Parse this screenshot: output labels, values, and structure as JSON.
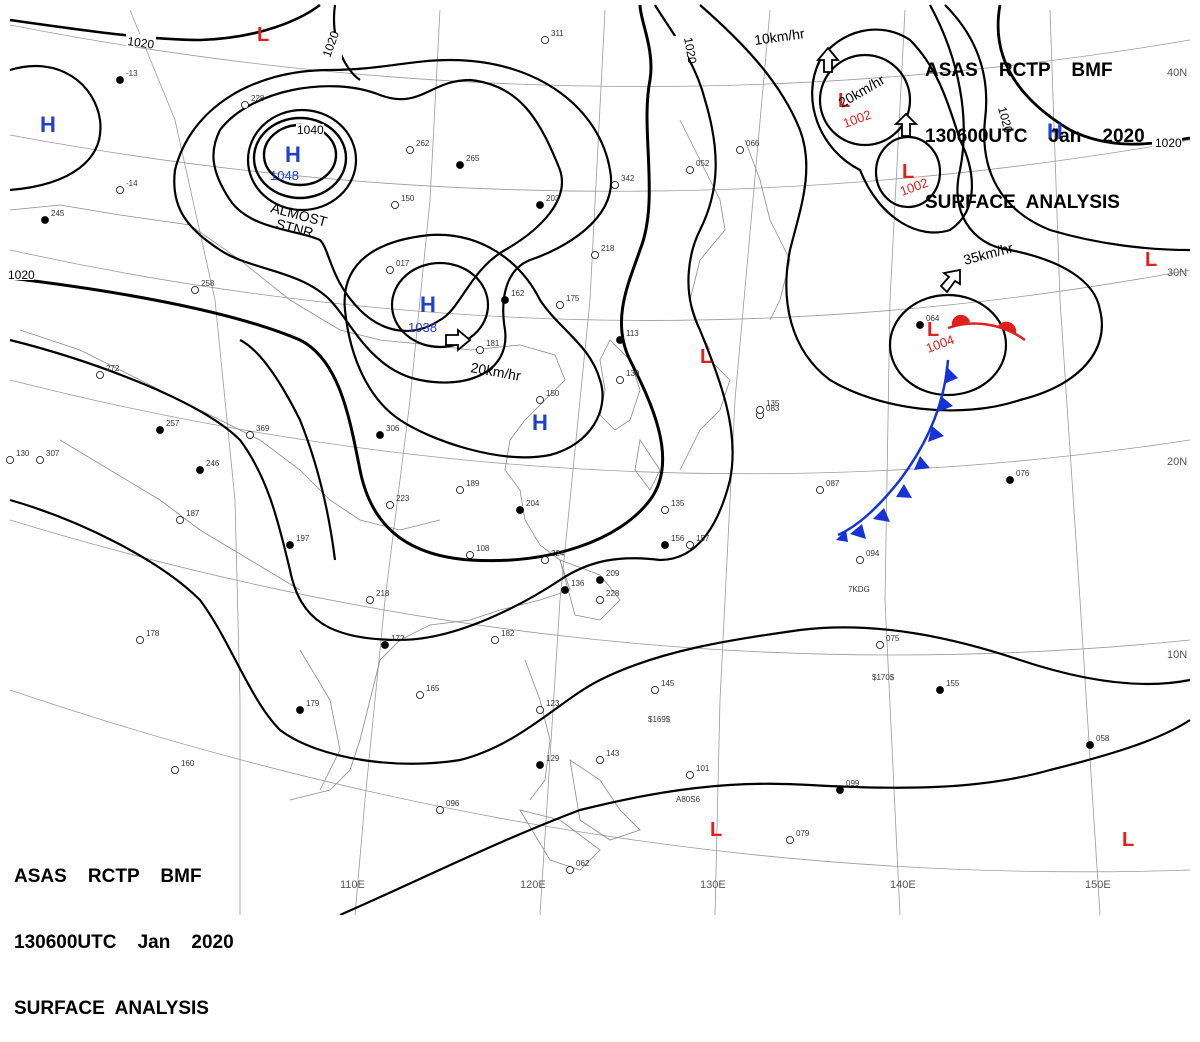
{
  "header": {
    "line1": "ASAS    RCTP    BMF",
    "line2": "130600UTC    Jan    2020",
    "line3": "SURFACE  ANALYSIS"
  },
  "colors": {
    "high": "#1f3fd0",
    "low": "#e0201c",
    "cold_front": "#1533d6",
    "warm_front": "#e0201c",
    "isobar": "#000000"
  },
  "lon_labels": [
    "110E",
    "120E",
    "130E",
    "140E",
    "150E"
  ],
  "lat_labels": [
    "40N",
    "30N",
    "20N",
    "10N"
  ],
  "isobars": {
    "lbl_1020_a": "1020",
    "lbl_1020_b": "1020",
    "lbl_1020_c": "1020",
    "lbl_1020_d": "1020",
    "lbl_1020_e": "1020",
    "lbl_1040": "1040"
  },
  "pressure_centers": [
    {
      "type": "H",
      "value": "1048",
      "note": "ALMOST STNR"
    },
    {
      "type": "H",
      "value": "1038",
      "motion": "20km/hr"
    },
    {
      "type": "H",
      "value": ""
    },
    {
      "type": "H",
      "value": ""
    },
    {
      "type": "H",
      "value": ""
    },
    {
      "type": "L",
      "value": "1002",
      "motion": "20km/hr"
    },
    {
      "type": "L",
      "value": "1002",
      "motion": "10km/hr"
    },
    {
      "type": "L",
      "value": "1004",
      "motion": "35km/hr"
    },
    {
      "type": "L",
      "value": ""
    },
    {
      "type": "L",
      "value": ""
    },
    {
      "type": "L",
      "value": ""
    },
    {
      "type": "L",
      "value": ""
    },
    {
      "type": "L",
      "value": ""
    }
  ],
  "notes": {
    "almost": "ALMOST",
    "stnr": "STNR",
    "speed_20_west": "20km/hr",
    "speed_10": "10km/hr",
    "speed_20_east": "20km/hr",
    "speed_35": "35km/hr"
  },
  "stations": [
    "-13",
    "228",
    "262",
    "265",
    "311",
    "342",
    "203",
    "218",
    "-14",
    "245",
    "258",
    "272",
    "257",
    "369",
    "307",
    "306",
    "223",
    "189",
    "204",
    "108",
    "135",
    "156",
    "157",
    "224",
    "209",
    "228",
    "218",
    "197",
    "187",
    "178",
    "172",
    "182",
    "165",
    "179",
    "160",
    "096",
    "129",
    "123",
    "145",
    "155",
    "143",
    "101",
    "099",
    "079",
    "062",
    "058",
    "094",
    "087",
    "076",
    "075",
    "083",
    "064",
    "066",
    "052",
    "113",
    "150",
    "139",
    "136",
    "150",
    "017",
    "162",
    "181",
    "175",
    "246",
    "130",
    "135"
  ],
  "station_extras": [
    "$169$",
    "$170$",
    "7KDG",
    "A80S6"
  ]
}
